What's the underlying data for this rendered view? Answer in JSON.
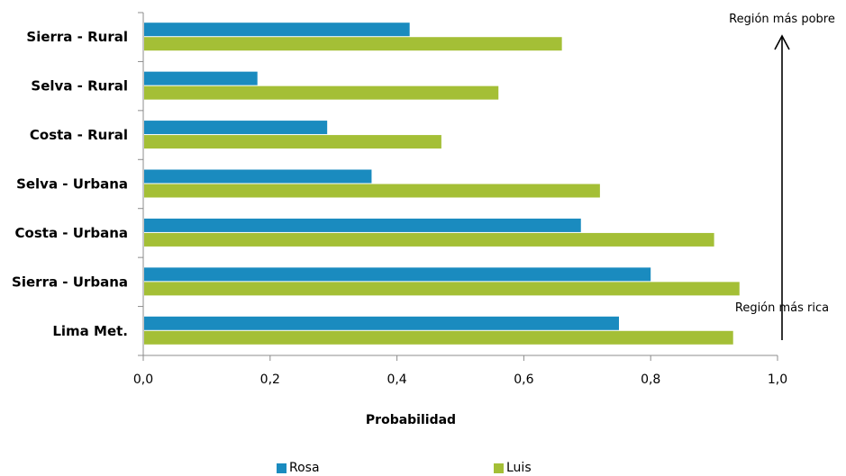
{
  "chart_data": {
    "type": "bar",
    "orientation": "horizontal",
    "categories": [
      "Sierra - Rural",
      "Selva - Rural",
      "Costa - Rural",
      "Selva - Urbana",
      "Costa - Urbana",
      "Sierra - Urbana",
      "Lima Met."
    ],
    "series": [
      {
        "name": "Rosa",
        "color": "#1a8bbf",
        "values": [
          0.42,
          0.18,
          0.29,
          0.36,
          0.69,
          0.8,
          0.75
        ]
      },
      {
        "name": "Luis",
        "color": "#a4bf36",
        "values": [
          0.66,
          0.56,
          0.47,
          0.72,
          0.9,
          0.94,
          0.93
        ]
      }
    ],
    "xlabel": "Probabilidad",
    "xlim": [
      0,
      1.0
    ],
    "xticks": [
      "0,0",
      "0,2",
      "0,4",
      "0,6",
      "0,8",
      "1,0"
    ],
    "grid": false,
    "legend_position": "bottom",
    "annotations": {
      "top": "Región más pobre",
      "bottom": "Región más rica"
    }
  }
}
